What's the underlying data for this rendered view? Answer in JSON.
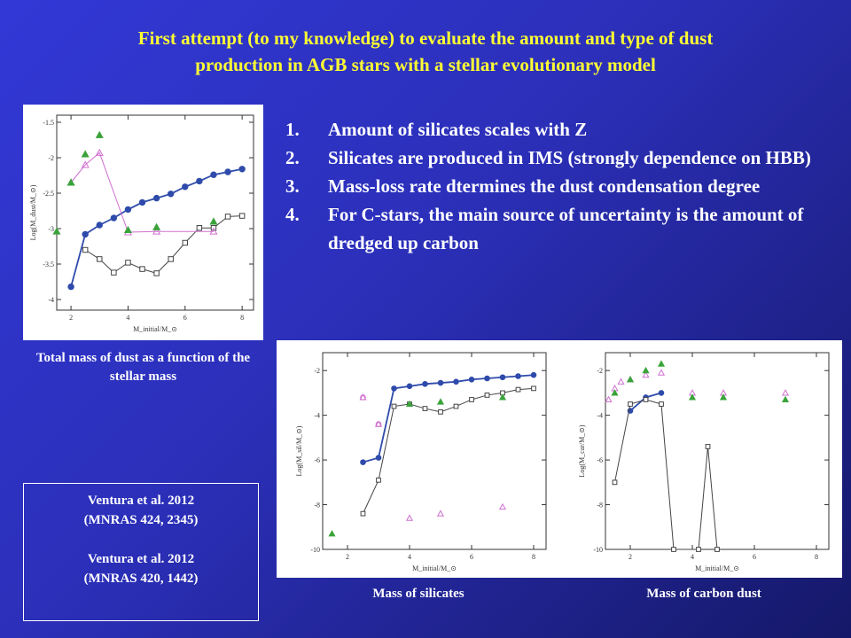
{
  "slide": {
    "title_line1": "First attempt (to my knowledge) to evaluate the amount and type of dust",
    "title_line2": "production in AGB stars with a stellar evolutionary model",
    "points": [
      {
        "num": "1.",
        "text": "Amount of silicates scales with Z"
      },
      {
        "num": "2.",
        "text": "Silicates are produced in IMS (strongly dependence on HBB)"
      },
      {
        "num": "3.",
        "text": "Mass-loss rate dtermines the dust condensation degree"
      },
      {
        "num": "4.",
        "text": "For C-stars, the main source of uncertainty is the amount of dredged up carbon"
      }
    ],
    "caption_total": "Total mass of dust as a function of the stellar mass",
    "caption_silicates": "Mass of silicates",
    "caption_carbon": "Mass of carbon dust",
    "references": [
      "Ventura et al. 2012",
      "(MNRAS 424, 2345)",
      "Ventura et al. 2012",
      "(MNRAS 420, 1442)"
    ],
    "colors": {
      "title": "#ffff33",
      "blue_series": "#2e4bab",
      "pink_series": "#d070d0",
      "green_series": "#3aa33a",
      "black_series": "#444444"
    }
  },
  "chart_data": [
    {
      "type": "scatter",
      "xlabel": "M_initial/M_⊙",
      "ylabel": "Log(M_dust/M_⊙)",
      "xlim": [
        1.5,
        8.4
      ],
      "ylim": [
        -4.15,
        -1.4
      ],
      "xticks": [
        "2",
        "4",
        "6",
        "8"
      ],
      "yticks": [
        "-1.5",
        "-2",
        "-2.5",
        "-3",
        "-3.5",
        "-4"
      ],
      "series": [
        {
          "style": "blue-filled-circle-line",
          "x": [
            2.0,
            2.5,
            3.0,
            3.5,
            4.0,
            4.5,
            5.0,
            5.5,
            6.0,
            6.5,
            7.0,
            7.5,
            8.0
          ],
          "y": [
            -3.82,
            -3.08,
            -2.95,
            -2.85,
            -2.73,
            -2.63,
            -2.57,
            -2.51,
            -2.41,
            -2.33,
            -2.24,
            -2.2,
            -2.16
          ]
        },
        {
          "style": "black-open-square-line",
          "x": [
            2.5,
            3.0,
            3.5,
            4.0,
            4.5,
            5.0,
            5.5,
            6.0,
            6.5,
            7.0,
            7.5,
            8.0
          ],
          "y": [
            -3.3,
            -3.43,
            -3.62,
            -3.48,
            -3.57,
            -3.63,
            -3.43,
            -3.2,
            -2.99,
            -2.99,
            -2.83,
            -2.82
          ]
        },
        {
          "style": "pink-open-triangle-line",
          "x": [
            2.0,
            2.5,
            3.0,
            4.0,
            5.0,
            7.0
          ],
          "y": [
            -2.35,
            -2.1,
            -1.93,
            -3.05,
            -3.04,
            -3.04
          ]
        },
        {
          "style": "green-filled-triangle",
          "x": [
            1.5,
            2.0,
            2.5,
            3.0,
            4.0,
            5.0,
            7.0
          ],
          "y": [
            -3.04,
            -2.35,
            -1.95,
            -1.68,
            -3.02,
            -2.98,
            -2.9
          ]
        }
      ]
    },
    {
      "type": "scatter",
      "xlabel": "M_initial/M_⊙",
      "ylabel": "Log(M_sil/M_⊙)",
      "xlim": [
        1.2,
        8.4
      ],
      "ylim": [
        -10,
        -1.2
      ],
      "xticks": [
        "2",
        "4",
        "6",
        "8"
      ],
      "yticks": [
        "-2",
        "-4",
        "-6",
        "-8",
        "-10"
      ],
      "series": [
        {
          "style": "blue-filled-circle-line",
          "x": [
            2.5,
            3.0,
            3.5,
            4.0,
            4.5,
            5.0,
            5.5,
            6.0,
            6.5,
            7.0,
            7.5,
            8.0
          ],
          "y": [
            -6.1,
            -5.9,
            -2.8,
            -2.7,
            -2.6,
            -2.55,
            -2.5,
            -2.4,
            -2.35,
            -2.3,
            -2.25,
            -2.2
          ]
        },
        {
          "style": "black-open-square-line",
          "x": [
            2.5,
            3.0,
            3.5,
            4.0,
            4.5,
            5.0,
            5.5,
            6.0,
            6.5,
            7.0,
            7.5,
            8.0
          ],
          "y": [
            -8.4,
            -6.9,
            -3.6,
            -3.5,
            -3.7,
            -3.85,
            -3.6,
            -3.3,
            -3.1,
            -3.0,
            -2.85,
            -2.8
          ]
        },
        {
          "style": "pink-open-triangle",
          "x": [
            2.5,
            3.0,
            4.0,
            5.0,
            7.0
          ],
          "y": [
            -3.2,
            -4.4,
            -8.6,
            -8.4,
            -8.1
          ]
        },
        {
          "style": "pink-open-circle",
          "x": [
            2.5,
            3.0
          ],
          "y": [
            -3.2,
            -4.4
          ]
        },
        {
          "style": "green-filled-triangle",
          "x": [
            1.5,
            4.0,
            5.0,
            7.0
          ],
          "y": [
            -9.3,
            -3.5,
            -3.4,
            -3.2
          ]
        }
      ]
    },
    {
      "type": "scatter",
      "xlabel": "M_initial/M_⊙",
      "ylabel": "Log(M_car/M_⊙)",
      "xlim": [
        1.2,
        8.4
      ],
      "ylim": [
        -10,
        -1.2
      ],
      "xticks": [
        "2",
        "4",
        "6",
        "8"
      ],
      "yticks": [
        "-2",
        "-4",
        "-6",
        "-8",
        "-10"
      ],
      "series": [
        {
          "style": "blue-filled-circle-line",
          "x": [
            2.0,
            2.5,
            3.0
          ],
          "y": [
            -3.8,
            -3.2,
            -3.0
          ]
        },
        {
          "style": "black-open-square-line",
          "x": [
            1.5,
            2.0,
            2.5,
            3.0,
            3.4,
            4.2,
            4.5,
            4.8
          ],
          "y": [
            -7.0,
            -3.5,
            -3.3,
            -3.5,
            -10.0,
            -10.0,
            -5.4,
            -10.0
          ]
        },
        {
          "style": "pink-open-triangle",
          "x": [
            1.3,
            1.5,
            1.7,
            2.0,
            2.5,
            3.0,
            4.0,
            5.0,
            7.0
          ],
          "y": [
            -3.3,
            -2.8,
            -2.5,
            -2.4,
            -2.2,
            -2.1,
            -3.0,
            -3.0,
            -3.0
          ]
        },
        {
          "style": "green-filled-triangle",
          "x": [
            1.5,
            2.0,
            2.5,
            3.0,
            4.0,
            5.0,
            7.0
          ],
          "y": [
            -3.0,
            -2.4,
            -2.0,
            -1.7,
            -3.2,
            -3.2,
            -3.3
          ]
        }
      ]
    }
  ]
}
